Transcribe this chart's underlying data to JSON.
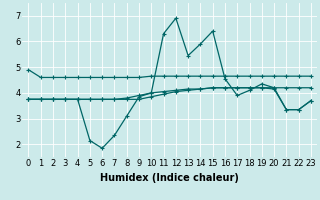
{
  "xlabel": "Humidex (Indice chaleur)",
  "xlim": [
    -0.5,
    23.5
  ],
  "ylim": [
    1.5,
    7.5
  ],
  "xticks": [
    0,
    1,
    2,
    3,
    4,
    5,
    6,
    7,
    8,
    9,
    10,
    11,
    12,
    13,
    14,
    15,
    16,
    17,
    18,
    19,
    20,
    21,
    22,
    23
  ],
  "yticks": [
    2,
    3,
    4,
    5,
    6,
    7
  ],
  "background_color": "#cceaea",
  "grid_color": "#ffffff",
  "line_color": "#006666",
  "series": {
    "line1": [
      4.9,
      4.6,
      4.6,
      4.6,
      4.6,
      4.6,
      4.6,
      4.6,
      4.6,
      4.6,
      4.65,
      4.65,
      4.65,
      4.65,
      4.65,
      4.65,
      4.65,
      4.65,
      4.65,
      4.65,
      4.65,
      4.65,
      4.65,
      4.65
    ],
    "line2": [
      3.75,
      3.75,
      3.75,
      3.75,
      3.75,
      2.15,
      1.85,
      2.35,
      3.1,
      3.85,
      4.0,
      6.3,
      6.9,
      5.45,
      5.9,
      6.4,
      4.55,
      3.9,
      4.1,
      4.35,
      4.2,
      3.35,
      3.35,
      3.7
    ],
    "line3": [
      3.75,
      3.75,
      3.75,
      3.75,
      3.75,
      3.75,
      3.75,
      3.75,
      3.75,
      3.75,
      3.85,
      3.95,
      4.05,
      4.1,
      4.15,
      4.2,
      4.2,
      4.2,
      4.2,
      4.2,
      4.2,
      4.2,
      4.2,
      4.2
    ],
    "line4": [
      3.75,
      3.75,
      3.75,
      3.75,
      3.75,
      3.75,
      3.75,
      3.75,
      3.8,
      3.9,
      4.0,
      4.05,
      4.1,
      4.15,
      4.15,
      4.2,
      4.2,
      4.2,
      4.2,
      4.2,
      4.15,
      3.35,
      3.35,
      3.7
    ]
  },
  "marker": "+",
  "markersize": 3,
  "linewidth": 0.9,
  "fontsize_ticks": 6,
  "fontsize_xlabel": 7
}
